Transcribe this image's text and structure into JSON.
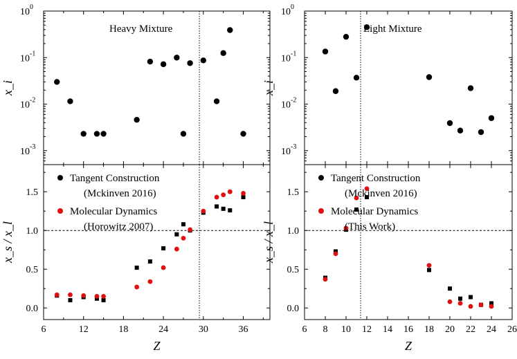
{
  "colors": {
    "tangent": "#000000",
    "md": "#e01010",
    "axis": "#000000"
  },
  "chart_data": [
    {
      "id": "heavy_top",
      "type": "scatter",
      "title": "Heavy Mixture",
      "xlabel": "",
      "ylabel": "x_i",
      "xlim": [
        6,
        40
      ],
      "ylim": [
        0.0005,
        1
      ],
      "yscale": "log",
      "xticks": [
        "6",
        "12",
        "18",
        "24",
        "30",
        "36"
      ],
      "yticks": [
        {
          "value": 0.001,
          "base": "10",
          "exp": "-3"
        },
        {
          "value": 0.01,
          "base": "10",
          "exp": "-2"
        },
        {
          "value": 0.1,
          "base": "10",
          "exp": "-1"
        },
        {
          "value": 1,
          "base": "10",
          "exp": "0"
        }
      ],
      "vline": 29.4,
      "series": [
        {
          "color": "#000000",
          "marker": "circle",
          "points": [
            [
              8,
              0.03
            ],
            [
              10,
              0.0115
            ],
            [
              12,
              0.0023
            ],
            [
              14,
              0.0023
            ],
            [
              15,
              0.0023
            ],
            [
              20,
              0.0046
            ],
            [
              22,
              0.082
            ],
            [
              24,
              0.072
            ],
            [
              26,
              0.1
            ],
            [
              27,
              0.0023
            ],
            [
              28,
              0.076
            ],
            [
              30,
              0.087
            ],
            [
              32,
              0.0115
            ],
            [
              33,
              0.125
            ],
            [
              34,
              0.39
            ],
            [
              36,
              0.0023
            ]
          ]
        }
      ]
    },
    {
      "id": "heavy_bottom",
      "type": "scatter",
      "title": "",
      "xlabel": "Z",
      "ylabel": "x_s / x_l",
      "xlim": [
        6,
        40
      ],
      "ylim": [
        -0.15,
        1.85
      ],
      "xticks": [
        "6",
        "12",
        "18",
        "24",
        "30",
        "36"
      ],
      "yticks": [
        "0.0",
        "0.5",
        "1.0",
        "1.5"
      ],
      "vline": 29.4,
      "hline": 1.0,
      "legend": [
        {
          "marker": "circle",
          "color": "#000000",
          "lines": [
            "Tangent Construction",
            "(Mckinven 2016)"
          ]
        },
        {
          "marker": "circle",
          "color": "#e01010",
          "lines": [
            "Molecular Dynamics",
            "(Horowitz 2007)"
          ]
        }
      ],
      "series": [
        {
          "name": "Tangent Construction",
          "color": "#000000",
          "marker": "square",
          "points": [
            [
              8,
              0.16
            ],
            [
              10,
              0.1
            ],
            [
              12,
              0.14
            ],
            [
              14,
              0.12
            ],
            [
              15,
              0.1
            ],
            [
              20,
              0.52
            ],
            [
              22,
              0.6
            ],
            [
              24,
              0.77
            ],
            [
              26,
              0.95
            ],
            [
              27,
              1.08
            ],
            [
              28,
              1.0
            ],
            [
              30,
              1.23
            ],
            [
              32,
              1.31
            ],
            [
              33,
              1.28
            ],
            [
              34,
              1.26
            ],
            [
              36,
              1.43
            ]
          ]
        },
        {
          "name": "Molecular Dynamics",
          "color": "#e01010",
          "marker": "circle",
          "points": [
            [
              8,
              0.17
            ],
            [
              10,
              0.17
            ],
            [
              12,
              0.16
            ],
            [
              14,
              0.15
            ],
            [
              15,
              0.15
            ],
            [
              20,
              0.27
            ],
            [
              22,
              0.34
            ],
            [
              24,
              0.52
            ],
            [
              26,
              0.76
            ],
            [
              27,
              0.9
            ],
            [
              28,
              1.01
            ],
            [
              30,
              1.25
            ],
            [
              32,
              1.43
            ],
            [
              33,
              1.46
            ],
            [
              34,
              1.5
            ],
            [
              36,
              1.48
            ]
          ]
        }
      ]
    },
    {
      "id": "light_top",
      "type": "scatter",
      "title": "Light Mixture",
      "xlabel": "",
      "ylabel": "x_i",
      "xlim": [
        6,
        26
      ],
      "ylim": [
        0.0005,
        1
      ],
      "yscale": "log",
      "xticks": [
        "6",
        "8",
        "10",
        "12",
        "14",
        "16",
        "18",
        "20",
        "22",
        "24",
        "26"
      ],
      "yticks": [
        {
          "value": 0.001,
          "base": "10",
          "exp": "-3"
        },
        {
          "value": 0.01,
          "base": "10",
          "exp": "-2"
        },
        {
          "value": 0.1,
          "base": "10",
          "exp": "-1"
        },
        {
          "value": 1,
          "base": "10",
          "exp": "0"
        }
      ],
      "vline": 11.4,
      "series": [
        {
          "color": "#000000",
          "marker": "circle",
          "points": [
            [
              8,
              0.135
            ],
            [
              9,
              0.019
            ],
            [
              10,
              0.28
            ],
            [
              11,
              0.037
            ],
            [
              12,
              0.45
            ],
            [
              18,
              0.038
            ],
            [
              20,
              0.0039
            ],
            [
              21,
              0.0027
            ],
            [
              22,
              0.022
            ],
            [
              23,
              0.0025
            ],
            [
              24,
              0.005
            ]
          ]
        }
      ]
    },
    {
      "id": "light_bottom",
      "type": "scatter",
      "title": "",
      "xlabel": "Z",
      "ylabel": "x_s / x_l",
      "xlim": [
        6,
        26
      ],
      "ylim": [
        -0.15,
        1.85
      ],
      "xticks": [
        "6",
        "8",
        "10",
        "12",
        "14",
        "16",
        "18",
        "20",
        "22",
        "24",
        "26"
      ],
      "yticks": [
        "0.0",
        "0.5",
        "1.0",
        "1.5"
      ],
      "vline": 11.4,
      "hline": 1.0,
      "legend": [
        {
          "marker": "circle",
          "color": "#000000",
          "lines": [
            "Tangent Construction",
            "(Mckinven 2016)"
          ]
        },
        {
          "marker": "circle",
          "color": "#e01010",
          "lines": [
            "Molecular Dynamics",
            "(This Work)"
          ]
        }
      ],
      "series": [
        {
          "name": "Tangent Construction",
          "color": "#000000",
          "marker": "square",
          "points": [
            [
              8,
              0.39
            ],
            [
              9,
              0.73
            ],
            [
              10,
              1.01
            ],
            [
              11,
              1.27
            ],
            [
              12,
              1.43
            ],
            [
              18,
              0.49
            ],
            [
              20,
              0.25
            ],
            [
              21,
              0.12
            ],
            [
              22,
              0.14
            ],
            [
              23,
              0.04
            ],
            [
              24,
              0.06
            ]
          ]
        },
        {
          "name": "Molecular Dynamics",
          "color": "#e01010",
          "marker": "circle",
          "points": [
            [
              8,
              0.37
            ],
            [
              9,
              0.7
            ],
            [
              10,
              1.03
            ],
            [
              11,
              1.42
            ],
            [
              12,
              1.54
            ],
            [
              18,
              0.55
            ],
            [
              20,
              0.08
            ],
            [
              21,
              0.06
            ],
            [
              22,
              0.02
            ],
            [
              23,
              0.04
            ],
            [
              24,
              0.02
            ]
          ]
        }
      ]
    }
  ]
}
